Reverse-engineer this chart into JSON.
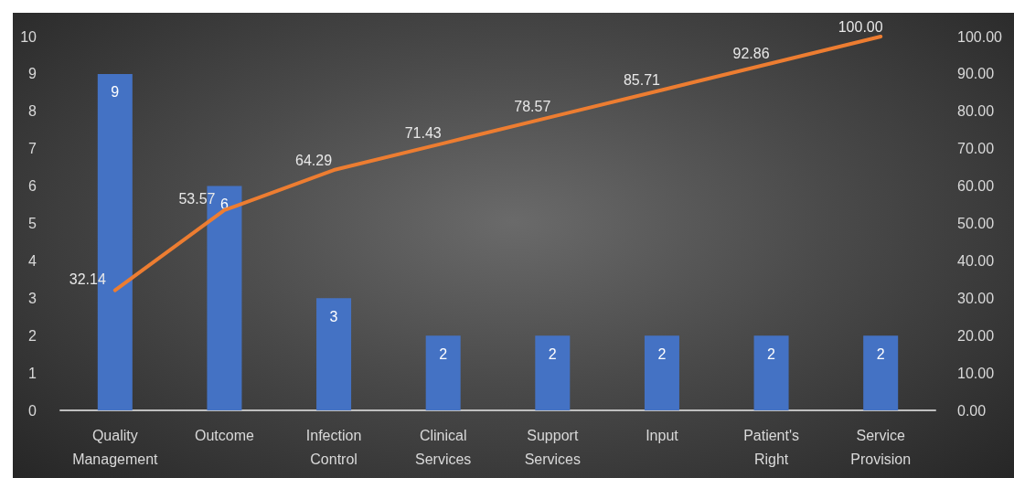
{
  "chart_data": {
    "type": "bar",
    "categories": [
      "Quality\nManagement",
      "Outcome",
      "Infection\nControl",
      "Clinical\nServices",
      "Support\nServices",
      "Input",
      "Patient's\nRight",
      "Service\nProvision"
    ],
    "series": [
      {
        "color": "#4472c4",
        "values": [
          9,
          6,
          3,
          2,
          2,
          2,
          2,
          2
        ],
        "value_labels": [
          "9",
          "6",
          "3",
          "2",
          "2",
          "2",
          "2",
          "2"
        ]
      },
      {
        "type": "line",
        "axis": "y2",
        "color": "#ed7d31",
        "values": [
          32.14,
          53.57,
          64.29,
          71.43,
          78.57,
          85.71,
          92.86,
          100
        ],
        "value_labels": [
          "32.14",
          "53.57",
          "64.29",
          "71.43",
          "78.57",
          "85.71",
          "92.86",
          "100.00"
        ]
      }
    ],
    "ylim": [
      0,
      10
    ],
    "yticks": [
      0,
      1,
      2,
      3,
      4,
      5,
      6,
      7,
      8,
      9,
      10
    ],
    "y2lim": [
      0,
      100
    ],
    "y2ticks": [
      {
        "value": 0,
        "label": "0.00"
      },
      {
        "value": 10,
        "label": "10.00"
      },
      {
        "value": 20,
        "label": "20.00"
      },
      {
        "value": 30,
        "label": "30.00"
      },
      {
        "value": 40,
        "label": "40.00"
      },
      {
        "value": 50,
        "label": "50.00"
      },
      {
        "value": 60,
        "label": "60.00"
      },
      {
        "value": 70,
        "label": "70.00"
      },
      {
        "value": 80,
        "label": "80.00"
      },
      {
        "value": 90,
        "label": "90.00"
      },
      {
        "value": 100,
        "label": "100.00"
      }
    ],
    "grid": false,
    "marker": "none",
    "line_style": "solid"
  }
}
